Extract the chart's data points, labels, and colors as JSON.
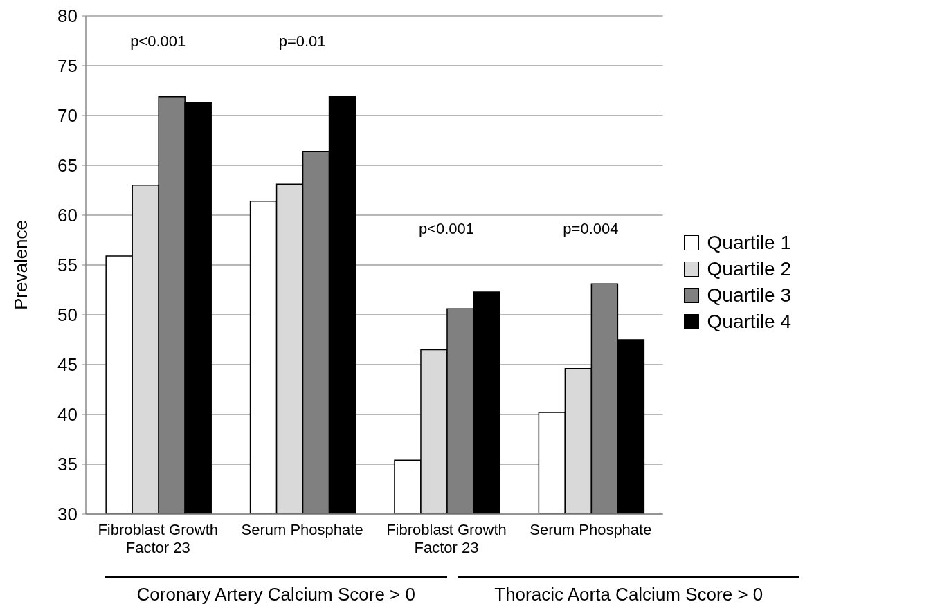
{
  "chart_data": {
    "type": "bar",
    "ylabel": "Prevalence",
    "categories": [
      "Fibroblast Growth Factor 23",
      "Serum Phosphate",
      "Fibroblast Growth Factor 23",
      "Serum Phosphate"
    ],
    "series": [
      {
        "name": "Quartile 1",
        "color": "#ffffff",
        "values": [
          55.9,
          61.4,
          35.4,
          40.2
        ]
      },
      {
        "name": "Quartile 2",
        "color": "#d9d9d9",
        "values": [
          63.0,
          63.1,
          46.5,
          44.6
        ]
      },
      {
        "name": "Quartile 3",
        "color": "#808080",
        "values": [
          71.9,
          66.4,
          50.6,
          53.1
        ]
      },
      {
        "name": "Quartile 4",
        "color": "#000000",
        "values": [
          71.3,
          71.9,
          52.3,
          47.5
        ]
      }
    ],
    "ylim": [
      30,
      80
    ],
    "yticks": [
      30,
      35,
      40,
      45,
      50,
      55,
      60,
      65,
      70,
      75,
      80
    ],
    "grid": "y",
    "legend": "right",
    "annotations": [
      "p<0.001",
      "p=0.01",
      "p<0.001",
      "p=0.004",
      "Coronary Artery Calcium Score > 0",
      "Thoracic Aorta Calcium Score > 0"
    ]
  }
}
